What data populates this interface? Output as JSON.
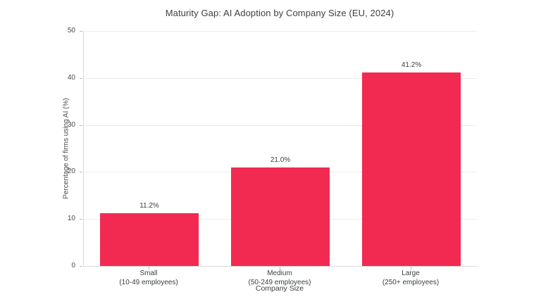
{
  "chart_data": {
    "type": "bar",
    "title": "Maturity Gap: AI Adoption by Company Size (EU, 2024)",
    "xlabel": "Company Size",
    "ylabel": "Percentage of firms using AI (%)",
    "categories": [
      {
        "label": "Small",
        "sublabel": "(10-49 employees)"
      },
      {
        "label": "Medium",
        "sublabel": "(50-249 employees)"
      },
      {
        "label": "Large",
        "sublabel": "(250+ employees)"
      }
    ],
    "values": [
      11.2,
      21.0,
      41.2
    ],
    "value_labels": [
      "11.2%",
      "21.0%",
      "41.2%"
    ],
    "ylim": [
      0,
      50
    ],
    "yticks": [
      0,
      10,
      20,
      30,
      40,
      50
    ],
    "bar_color": "#F22A52",
    "grid": true,
    "gridline_color": "#ececec",
    "legend": "none"
  }
}
